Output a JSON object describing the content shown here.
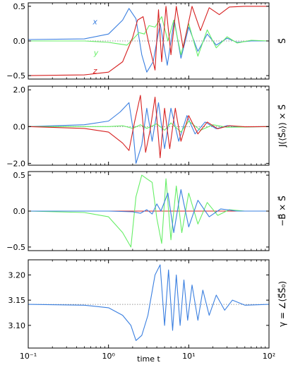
{
  "figure": {
    "xlabel": "time t",
    "xscale": "log",
    "xlim": [
      0.1,
      100
    ],
    "xticks": [
      {
        "value": 0.1,
        "label": "10⁻¹"
      },
      {
        "value": 1,
        "label": "10⁰"
      },
      {
        "value": 10,
        "label": "10¹"
      },
      {
        "value": 100,
        "label": "10²"
      }
    ]
  },
  "colors": {
    "x": "#3a7fe0",
    "y": "#66ee66",
    "z": "#d62020",
    "gamma": "#3a7fe0",
    "ref": "#777777"
  },
  "chart_data": [
    {
      "type": "line",
      "ylabel": "S⃗",
      "ylim": [
        -0.55,
        0.55
      ],
      "yticks": [
        {
          "value": 0.5,
          "label": "0.5"
        },
        {
          "value": 0,
          "label": "0.0"
        },
        {
          "value": -0.5,
          "label": "−0.5"
        }
      ],
      "reference_line": 0,
      "annotations": [
        {
          "text": "x",
          "x": 0.68,
          "y": 0.28,
          "series": "x"
        },
        {
          "text": "y",
          "x": 0.7,
          "y": -0.17,
          "series": "y"
        },
        {
          "text": "z",
          "x": 0.68,
          "y": -0.43,
          "series": "z"
        }
      ],
      "series": [
        {
          "key": "x",
          "x": [
            0.1,
            0.5,
            1.0,
            1.5,
            1.8,
            2.2,
            2.6,
            3.0,
            3.6,
            4.4,
            5.4,
            6.6,
            8.0,
            10,
            13,
            17,
            22,
            30,
            40,
            60,
            100
          ],
          "y": [
            0.02,
            0.03,
            0.1,
            0.3,
            0.47,
            0.32,
            -0.2,
            -0.45,
            -0.3,
            0.25,
            -0.35,
            0.3,
            -0.25,
            0.2,
            -0.15,
            0.1,
            -0.06,
            0.04,
            -0.02,
            0.0,
            0.0
          ]
        },
        {
          "key": "y",
          "x": [
            0.1,
            0.5,
            1.0,
            1.3,
            1.7,
            2.0,
            2.4,
            2.8,
            3.2,
            3.8,
            4.6,
            5.5,
            6.5,
            8.0,
            10,
            13,
            17,
            22,
            30,
            40,
            60,
            100
          ],
          "y": [
            0.0,
            0.0,
            -0.02,
            -0.04,
            -0.06,
            0.02,
            0.12,
            0.1,
            0.22,
            0.2,
            0.35,
            0.0,
            0.3,
            -0.2,
            0.25,
            -0.22,
            0.16,
            -0.1,
            0.06,
            -0.03,
            0.01,
            0.0
          ]
        },
        {
          "key": "z",
          "x": [
            0.1,
            0.5,
            1.0,
            1.5,
            2.0,
            2.3,
            2.7,
            3.2,
            3.8,
            4.2,
            4.6,
            5.2,
            6.0,
            7.0,
            8.5,
            11,
            14,
            18,
            24,
            32,
            50,
            100
          ],
          "y": [
            -0.5,
            -0.49,
            -0.45,
            -0.3,
            0.05,
            0.3,
            0.35,
            -0.05,
            -0.42,
            0.45,
            -0.3,
            0.5,
            -0.2,
            0.5,
            -0.1,
            0.5,
            0.15,
            0.48,
            0.38,
            0.49,
            0.5,
            0.5
          ]
        }
      ]
    },
    {
      "type": "line",
      "ylabel": "J(⟨S⃗₀⟩) × S⃗",
      "ylim": [
        -2.1,
        2.2
      ],
      "yticks": [
        {
          "value": 2.0,
          "label": "2.0"
        },
        {
          "value": 0,
          "label": "0.0"
        },
        {
          "value": -2.0,
          "label": "−2.0"
        }
      ],
      "reference_line": 0,
      "annotations": [],
      "series": [
        {
          "key": "x",
          "x": [
            0.1,
            0.5,
            1.0,
            1.4,
            1.8,
            2.0,
            2.2,
            2.6,
            3.0,
            3.5,
            4.2,
            5.0,
            6.0,
            7.5,
            9.5,
            12,
            16,
            22,
            30,
            45,
            100
          ],
          "y": [
            0.0,
            0.1,
            0.3,
            0.8,
            1.3,
            0.0,
            -2.0,
            -1.0,
            1.0,
            -0.8,
            1.3,
            -1.2,
            1.0,
            -0.8,
            0.6,
            -0.4,
            0.25,
            -0.12,
            0.05,
            -0.02,
            0.0
          ]
        },
        {
          "key": "y",
          "x": [
            0.1,
            1.0,
            1.5,
            2.0,
            2.5,
            3.0,
            4.0,
            5.0,
            6.0,
            8.0,
            10,
            14,
            20,
            30,
            100
          ],
          "y": [
            0.0,
            0.0,
            0.05,
            -0.1,
            0.1,
            -0.1,
            0.15,
            -0.2,
            0.2,
            -0.3,
            0.3,
            -0.2,
            0.1,
            -0.04,
            0.0
          ]
        },
        {
          "key": "z",
          "x": [
            0.1,
            0.5,
            1.0,
            1.5,
            1.8,
            2.1,
            2.5,
            2.9,
            3.3,
            3.8,
            4.4,
            5.0,
            5.8,
            6.8,
            8.0,
            10,
            13,
            17,
            23,
            32,
            50,
            100
          ],
          "y": [
            0.0,
            -0.1,
            -0.3,
            -0.9,
            -1.3,
            0.2,
            1.7,
            -1.4,
            -0.2,
            1.6,
            -1.7,
            1.0,
            -1.2,
            1.0,
            -0.8,
            0.6,
            -0.4,
            0.25,
            -0.12,
            0.05,
            -0.01,
            0.0
          ]
        }
      ]
    },
    {
      "type": "line",
      "ylabel": "−B⃗ × S⃗",
      "ylim": [
        -0.55,
        0.55
      ],
      "yticks": [
        {
          "value": 0.5,
          "label": "0.5"
        },
        {
          "value": 0,
          "label": "0.0"
        },
        {
          "value": -0.5,
          "label": "−0.5"
        }
      ],
      "reference_line": 0,
      "annotations": [],
      "series": [
        {
          "key": "z",
          "x": [
            0.1,
            100
          ],
          "y": [
            0.0,
            0.0
          ]
        },
        {
          "key": "y",
          "x": [
            0.1,
            0.5,
            1.0,
            1.5,
            1.9,
            2.2,
            2.6,
            3.0,
            3.5,
            4.0,
            4.6,
            5.2,
            6.0,
            7.0,
            8.2,
            10,
            13,
            17,
            23,
            32,
            50,
            100
          ],
          "y": [
            0.0,
            -0.02,
            -0.08,
            -0.3,
            -0.5,
            0.2,
            0.5,
            0.45,
            0.4,
            -0.1,
            -0.45,
            0.45,
            -0.4,
            0.35,
            -0.3,
            0.25,
            -0.18,
            0.12,
            -0.06,
            0.02,
            0.0,
            0.0
          ]
        },
        {
          "key": "x",
          "x": [
            0.1,
            1.0,
            2.0,
            2.5,
            3.0,
            3.5,
            4.0,
            4.5,
            5.5,
            6.5,
            8.0,
            10,
            13,
            18,
            25,
            40,
            100
          ],
          "y": [
            0.0,
            0.0,
            -0.01,
            -0.03,
            0.02,
            -0.04,
            0.1,
            0.0,
            0.25,
            -0.3,
            0.3,
            -0.22,
            0.15,
            -0.08,
            0.03,
            0.0,
            0.0
          ]
        }
      ]
    },
    {
      "type": "line",
      "ylabel": "γ = ∠(S⃗S⃗₀)",
      "ylim": [
        3.055,
        3.23
      ],
      "yticks": [
        {
          "value": 3.2,
          "label": "3.20"
        },
        {
          "value": 3.15,
          "label": "3.15"
        },
        {
          "value": 3.1,
          "label": "3.10"
        }
      ],
      "reference_line": 3.1416,
      "annotations": [],
      "series": [
        {
          "key": "gamma",
          "x": [
            0.1,
            0.5,
            1.0,
            1.5,
            1.9,
            2.2,
            2.6,
            3.1,
            3.8,
            4.4,
            5.0,
            5.6,
            6.3,
            7.0,
            7.8,
            8.7,
            9.7,
            11,
            13,
            15,
            18,
            22,
            28,
            35,
            50,
            100
          ],
          "y": [
            3.1416,
            3.14,
            3.135,
            3.12,
            3.1,
            3.07,
            3.08,
            3.12,
            3.2,
            3.22,
            3.1,
            3.21,
            3.09,
            3.2,
            3.1,
            3.19,
            3.11,
            3.18,
            3.11,
            3.17,
            3.12,
            3.16,
            3.13,
            3.15,
            3.14,
            3.1416
          ]
        }
      ]
    }
  ]
}
